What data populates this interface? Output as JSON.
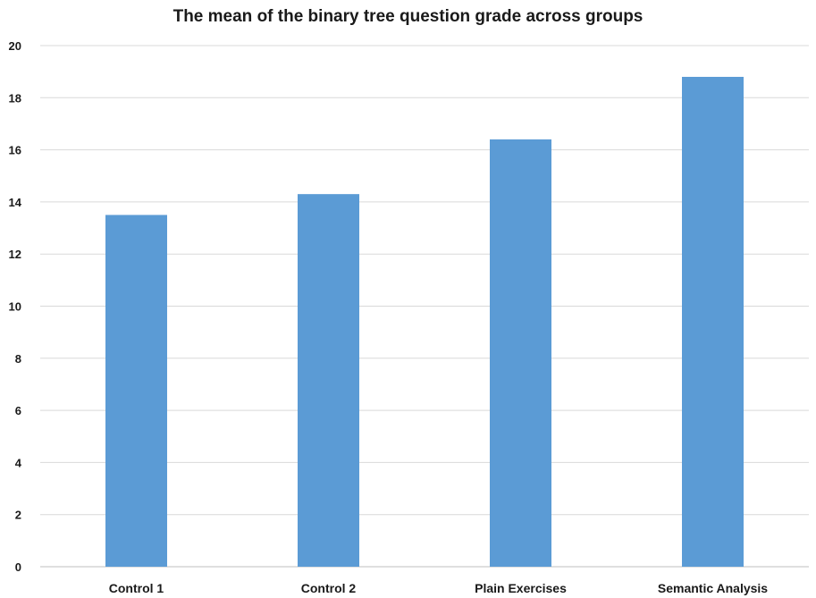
{
  "chart_data": {
    "type": "bar",
    "title": "The mean of the binary tree question grade across groups",
    "categories": [
      "Control 1",
      "Control 2",
      "Plain Exercises",
      "Semantic Analysis"
    ],
    "values": [
      13.5,
      14.3,
      16.4,
      18.8
    ],
    "xlabel": "",
    "ylabel": "",
    "ylim": [
      0,
      20
    ],
    "yticks": [
      "0",
      "2",
      "4",
      "6",
      "8",
      "10",
      "12",
      "14",
      "16",
      "18",
      "20"
    ],
    "grid": true,
    "legend": "none",
    "colors": {
      "bar": "#5b9bd5",
      "grid": "#d9d9d9",
      "axis": "#bfbfbf"
    }
  }
}
